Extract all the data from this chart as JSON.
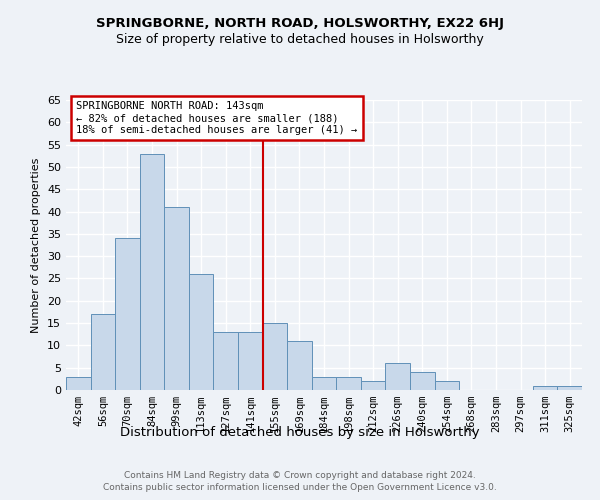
{
  "title": "SPRINGBORNE, NORTH ROAD, HOLSWORTHY, EX22 6HJ",
  "subtitle": "Size of property relative to detached houses in Holsworthy",
  "xlabel": "Distribution of detached houses by size in Holsworthy",
  "ylabel": "Number of detached properties",
  "categories": [
    "42sqm",
    "56sqm",
    "70sqm",
    "84sqm",
    "99sqm",
    "113sqm",
    "127sqm",
    "141sqm",
    "155sqm",
    "169sqm",
    "184sqm",
    "198sqm",
    "212sqm",
    "226sqm",
    "240sqm",
    "254sqm",
    "268sqm",
    "283sqm",
    "297sqm",
    "311sqm",
    "325sqm"
  ],
  "values": [
    3,
    17,
    34,
    53,
    41,
    26,
    13,
    13,
    15,
    11,
    3,
    3,
    2,
    6,
    4,
    2,
    0,
    0,
    0,
    1,
    1
  ],
  "bar_color": "#c8d8ea",
  "bar_edge_color": "#6090b8",
  "highlight_color": "#cc0000",
  "annotation_line1": "SPRINGBORNE NORTH ROAD: 143sqm",
  "annotation_line2": "← 82% of detached houses are smaller (188)",
  "annotation_line3": "18% of semi-detached houses are larger (41) →",
  "annotation_box_color": "#ffffff",
  "annotation_box_edge": "#cc0000",
  "ylim": [
    0,
    65
  ],
  "yticks": [
    0,
    5,
    10,
    15,
    20,
    25,
    30,
    35,
    40,
    45,
    50,
    55,
    60,
    65
  ],
  "footer1": "Contains HM Land Registry data © Crown copyright and database right 2024.",
  "footer2": "Contains public sector information licensed under the Open Government Licence v3.0.",
  "background_color": "#eef2f7",
  "grid_color": "#ffffff"
}
